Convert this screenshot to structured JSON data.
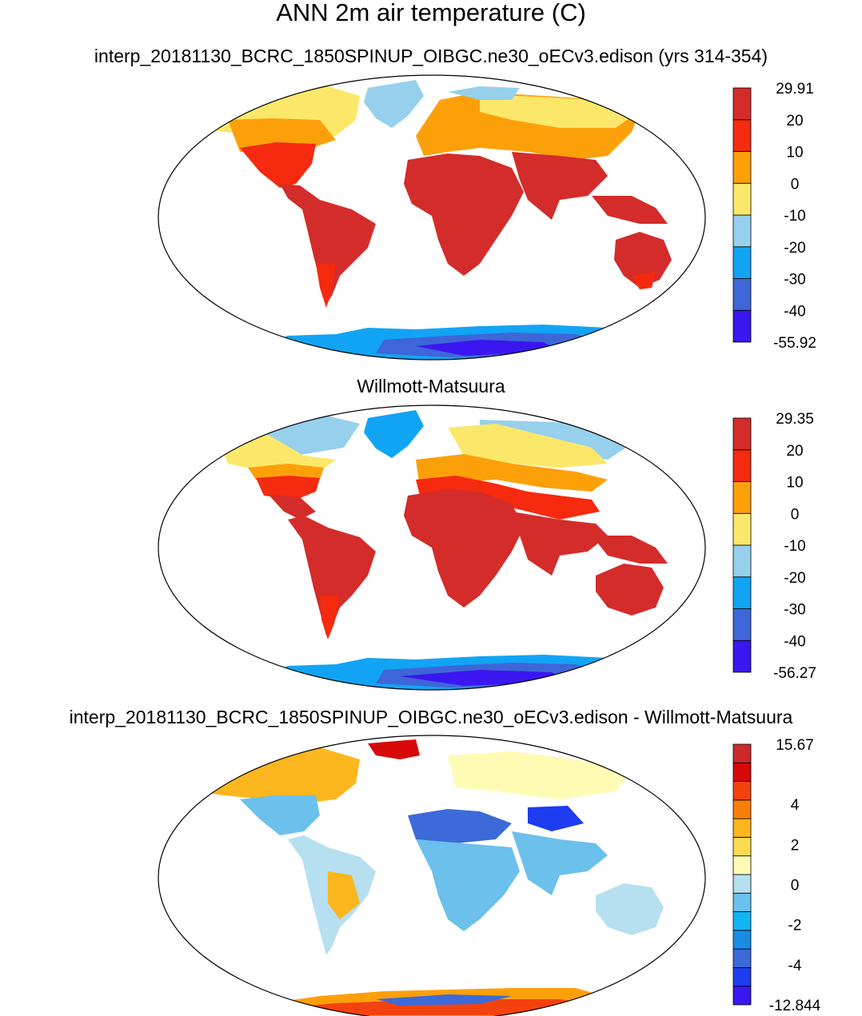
{
  "title": "ANN 2m air temperature (C)",
  "panels": [
    {
      "subtitle": "interp_20181130_BCRC_1850SPINUP_OIBGC.ne30_oECv3.edison (yrs 314-354)",
      "colorbar": {
        "colors": [
          "#3a16f0",
          "#3e66d8",
          "#12a4f4",
          "#96d0ec",
          "#fbe86a",
          "#fca00a",
          "#f52a0e",
          "#d42c2a"
        ],
        "labels": [
          "-55.92",
          "-40",
          "-30",
          "-20",
          "-10",
          "0",
          "10",
          "20",
          "29.91"
        ]
      }
    },
    {
      "subtitle": "Willmott-Matsuura",
      "colorbar": {
        "colors": [
          "#3a16f0",
          "#3e66d8",
          "#12a4f4",
          "#96d0ec",
          "#fbe86a",
          "#fca00a",
          "#f52a0e",
          "#d42c2a"
        ],
        "labels": [
          "-56.27",
          "-40",
          "-30",
          "-20",
          "-10",
          "0",
          "10",
          "20",
          "29.35"
        ]
      }
    },
    {
      "subtitle": "interp_20181130_BCRC_1850SPINUP_OIBGC.ne30_oECv3.edison - Willmott-Matsuura",
      "colorbar": {
        "colors": [
          "#3a16f0",
          "#1e3cf0",
          "#3c6ad8",
          "#1a8ce6",
          "#12b4f4",
          "#6cc0ec",
          "#b6e0f0",
          "#fefcb4",
          "#fcda52",
          "#fcb61e",
          "#fc7e0a",
          "#f4420e",
          "#d8080a",
          "#cc2a2a"
        ],
        "labels": [
          "-12.844",
          "",
          "-4",
          "",
          "-2",
          "",
          "0",
          "",
          "2",
          "",
          "4",
          "",
          "",
          "15.67"
        ]
      }
    }
  ]
}
